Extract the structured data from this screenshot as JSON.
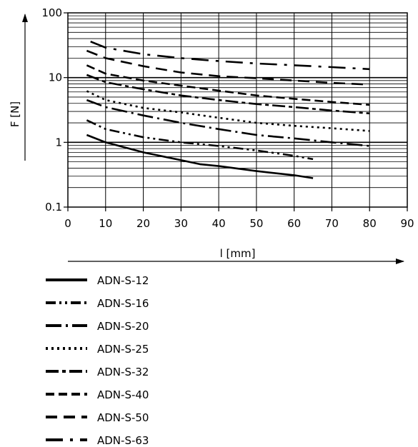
{
  "chart_data": {
    "type": "line",
    "y_scale": "log",
    "ylabel": "F [N]",
    "xlabel": "l [mm]",
    "xlim": [
      0,
      90
    ],
    "ylim": [
      0.1,
      100
    ],
    "x_ticks": [
      "0",
      "10",
      "20",
      "30",
      "40",
      "50",
      "60",
      "70",
      "80",
      "90"
    ],
    "y_ticks": [
      "0.1",
      "1",
      "10",
      "100"
    ],
    "grid": true,
    "legend_position": "below",
    "series": [
      {
        "name": "ADN-S-12",
        "x": [
          5,
          10,
          20,
          30,
          35,
          40,
          50,
          60,
          65
        ],
        "y": [
          1.3,
          1.0,
          0.7,
          0.53,
          0.46,
          0.43,
          0.36,
          0.31,
          0.28
        ]
      },
      {
        "name": "ADN-S-16",
        "x": [
          5,
          10,
          20,
          30,
          40,
          50,
          60,
          65
        ],
        "y": [
          2.2,
          1.6,
          1.2,
          1.0,
          0.88,
          0.75,
          0.62,
          0.55
        ]
      },
      {
        "name": "ADN-S-20",
        "x": [
          5,
          10,
          20,
          30,
          40,
          50,
          60,
          70,
          80
        ],
        "y": [
          4.5,
          3.5,
          2.6,
          2.0,
          1.6,
          1.3,
          1.15,
          1.0,
          0.88
        ]
      },
      {
        "name": "ADN-S-25",
        "x": [
          5,
          10,
          20,
          30,
          40,
          50,
          60,
          70,
          80
        ],
        "y": [
          6.2,
          4.5,
          3.4,
          2.9,
          2.4,
          2.0,
          1.8,
          1.65,
          1.5
        ]
      },
      {
        "name": "ADN-S-32",
        "x": [
          5,
          10,
          20,
          30,
          40,
          50,
          60,
          70,
          80
        ],
        "y": [
          11.0,
          8.5,
          6.6,
          5.3,
          4.5,
          3.9,
          3.5,
          3.1,
          2.8
        ]
      },
      {
        "name": "ADN-S-40",
        "x": [
          5,
          10,
          20,
          30,
          40,
          50,
          60,
          70,
          80
        ],
        "y": [
          15.5,
          11.5,
          9.0,
          7.5,
          6.3,
          5.3,
          4.7,
          4.2,
          3.8
        ]
      },
      {
        "name": "ADN-S-50",
        "x": [
          5,
          10,
          20,
          30,
          40,
          50,
          60,
          70,
          80
        ],
        "y": [
          26.0,
          20.0,
          15.0,
          12.0,
          10.5,
          9.8,
          9.0,
          8.3,
          7.8
        ]
      },
      {
        "name": "ADN-S-63",
        "x": [
          6,
          10,
          20,
          30,
          40,
          50,
          60,
          70,
          80
        ],
        "y": [
          36.0,
          29.0,
          23.0,
          20.0,
          18.0,
          16.5,
          15.5,
          14.5,
          13.5
        ]
      }
    ]
  }
}
